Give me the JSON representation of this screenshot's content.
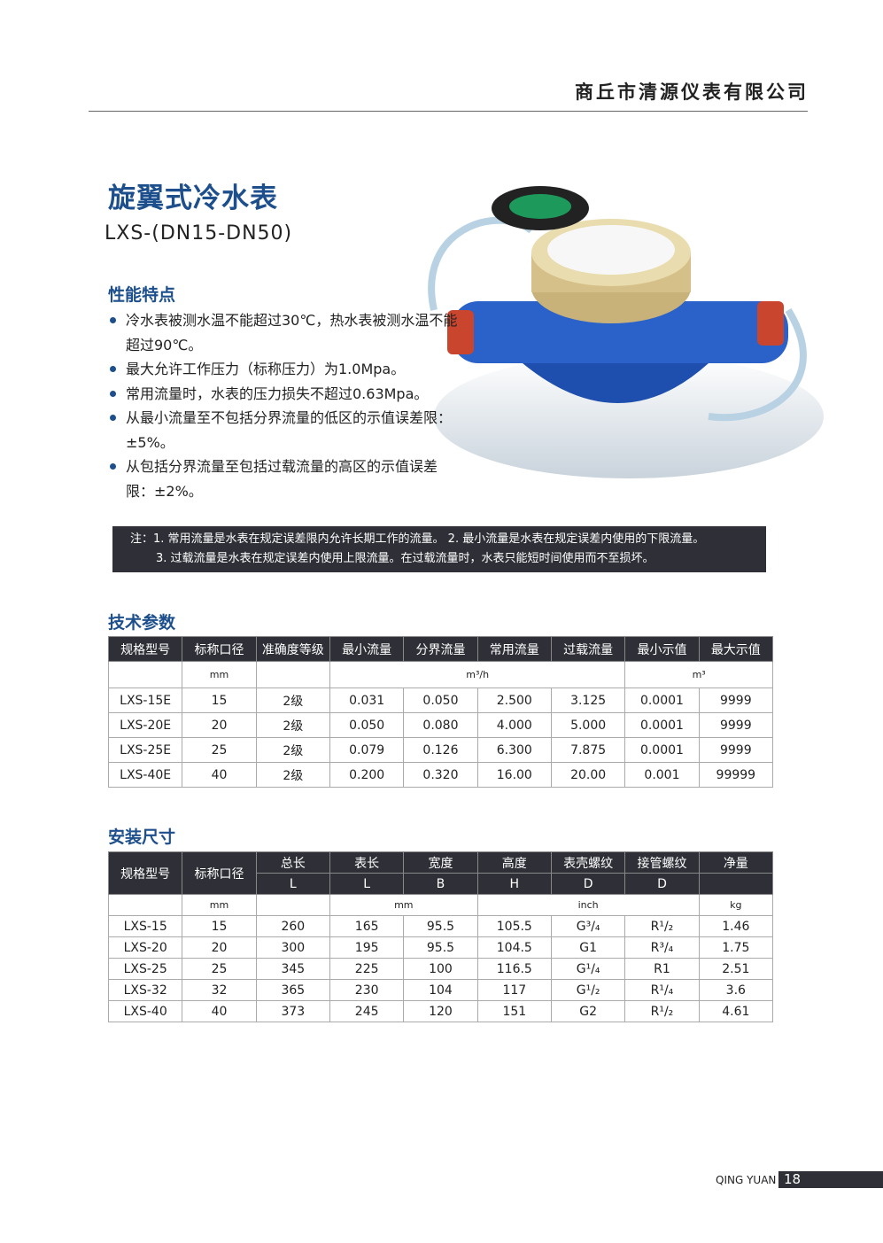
{
  "header": {
    "company": "商丘市清源仪表有限公司"
  },
  "product": {
    "title": "旋翼式冷水表",
    "model": "LXS-(DN15-DN50)"
  },
  "features": {
    "heading": "性能特点",
    "items": [
      "冷水表被测水温不能超过30℃，热水表被测水温不能超过90℃。",
      "最大允许工作压力（标称压力）为1.0Mpa。",
      "常用流量时，水表的压力损失不超过0.63Mpa。",
      "从最小流量至不包括分界流量的低区的示值误差限：±5%。",
      "从包括分界流量至包括过载流量的高区的示值误差限：±2%。"
    ]
  },
  "note": {
    "line1": "注：1. 常用流量是水表在规定误差限内允许长期工作的流量。   2. 最小流量是水表在规定误差内使用的下限流量。",
    "line2": "3. 过载流量是水表在规定误差内使用上限流量。在过载流量时，水表只能短时间使用而不至损坏。"
  },
  "tech": {
    "heading": "技术参数",
    "headers": [
      "规格型号",
      "标称口径",
      "准确度等级",
      "最小流量",
      "分界流量",
      "常用流量",
      "过载流量",
      "最小示值",
      "最大示值"
    ],
    "units": {
      "mm": "mm",
      "flow": "m³/h",
      "vol": "m³"
    },
    "rows": [
      [
        "LXS-15E",
        "15",
        "2级",
        "0.031",
        "0.050",
        "2.500",
        "3.125",
        "0.0001",
        "9999"
      ],
      [
        "LXS-20E",
        "20",
        "2级",
        "0.050",
        "0.080",
        "4.000",
        "5.000",
        "0.0001",
        "9999"
      ],
      [
        "LXS-25E",
        "25",
        "2级",
        "0.079",
        "0.126",
        "6.300",
        "7.875",
        "0.0001",
        "9999"
      ],
      [
        "LXS-40E",
        "40",
        "2级",
        "0.200",
        "0.320",
        "16.00",
        "20.00",
        "0.001",
        "99999"
      ]
    ]
  },
  "install": {
    "heading": "安装尺寸",
    "headers": [
      "规格型号",
      "标称口径",
      "总长",
      "表长",
      "宽度",
      "高度",
      "表壳螺纹",
      "接管螺纹",
      "净量"
    ],
    "sub": [
      "L",
      "L",
      "B",
      "H",
      "D",
      "D"
    ],
    "units": {
      "mm1": "mm",
      "mm2": "mm",
      "inch": "inch",
      "kg": "kg"
    },
    "rows": [
      [
        "LXS-15",
        "15",
        "260",
        "165",
        "95.5",
        "105.5",
        "G³/₄",
        "R¹/₂",
        "1.46"
      ],
      [
        "LXS-20",
        "20",
        "300",
        "195",
        "95.5",
        "104.5",
        "G1",
        "R³/₄",
        "1.75"
      ],
      [
        "LXS-25",
        "25",
        "345",
        "225",
        "100",
        "116.5",
        "G¹/₄",
        "R1",
        "2.51"
      ],
      [
        "LXS-32",
        "32",
        "365",
        "230",
        "104",
        "117",
        "G¹/₂",
        "R¹/₄",
        "3.6"
      ],
      [
        "LXS-40",
        "40",
        "373",
        "245",
        "120",
        "151",
        "G2",
        "R¹/₂",
        "4.61"
      ]
    ]
  },
  "footer": {
    "brand": "QING YUAN",
    "page": "18"
  },
  "colors": {
    "accent": "#1c4f8c",
    "dark": "#2f3037"
  }
}
